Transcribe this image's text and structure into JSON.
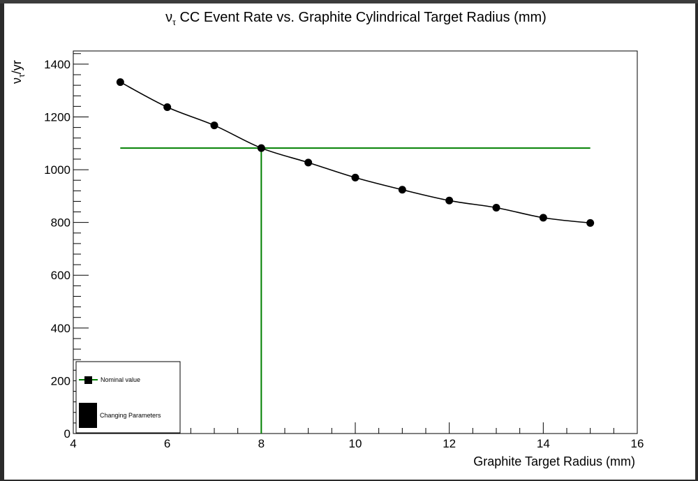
{
  "chart_data": {
    "type": "line",
    "title_prefix": "ν",
    "title_sub": "τ",
    "title_rest": " CC Event Rate vs. Graphite Cylindrical Target Radius (mm)",
    "xlabel": "Graphite Target Radius (mm)",
    "ylabel_prefix": "ν",
    "ylabel_sub": "τ",
    "ylabel_rest": "/yr",
    "xlim": [
      4,
      16
    ],
    "ylim": [
      0,
      1450
    ],
    "x_ticks": [
      4,
      6,
      8,
      10,
      12,
      14,
      16
    ],
    "y_ticks": [
      0,
      200,
      400,
      600,
      800,
      1000,
      1200,
      1400
    ],
    "series": [
      {
        "x": [
          5,
          6,
          7,
          8,
          9,
          10,
          11,
          12,
          13,
          14,
          15
        ],
        "y": [
          1332,
          1237,
          1168,
          1082,
          1027,
          970,
          924,
          883,
          856,
          818,
          798
        ],
        "color": "#000000"
      }
    ],
    "nominal": {
      "x": 8,
      "y": 1082,
      "x_start": 5,
      "x_end": 15,
      "color": "#008000"
    },
    "legend": [
      {
        "label": "Nominal value",
        "symbol": "line-marker",
        "color": "#008000"
      },
      {
        "label": "Changing Parameters",
        "symbol": "box",
        "color": "#000000"
      }
    ],
    "legend_position": "bottom-left",
    "grid": false
  }
}
